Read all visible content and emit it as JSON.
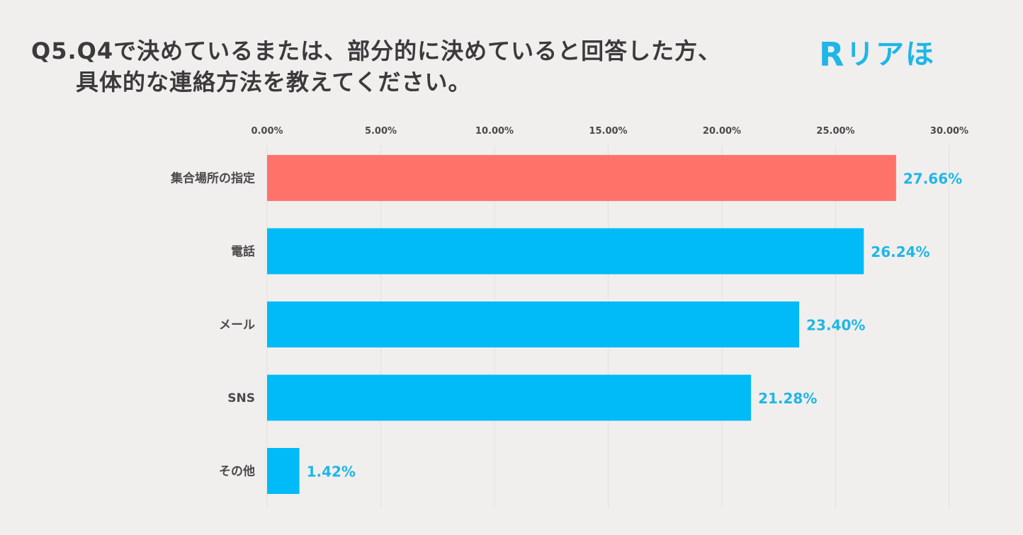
{
  "title": {
    "line1": "Q5.Q4で決めているまたは、部分的に決めていると回答した方、",
    "line2": "具体的な連絡方法を教えてください。"
  },
  "logo": {
    "mark": "R",
    "text": "リアほ",
    "color": "#1fb6e8"
  },
  "colors": {
    "highlight": "#ff726a",
    "bar": "#00bbf7",
    "value_label": "#1fb6e8",
    "gridline": "#e2e1df"
  },
  "chart_data": {
    "type": "bar",
    "orientation": "horizontal",
    "categories": [
      "集合場所の指定",
      "電話",
      "メール",
      "SNS",
      "その他"
    ],
    "values": [
      27.66,
      26.24,
      23.4,
      21.28,
      1.42
    ],
    "value_labels": [
      "27.66%",
      "26.24%",
      "23.40%",
      "21.28%",
      "1.42%"
    ],
    "highlight_index": 0,
    "xlim": [
      0,
      30
    ],
    "ticks": [
      0,
      5,
      10,
      15,
      20,
      25,
      30
    ],
    "tick_labels": [
      "0.00%",
      "5.00%",
      "10.00%",
      "15.00%",
      "20.00%",
      "25.00%",
      "30.00%"
    ],
    "axis_position": "top",
    "grid": true,
    "legend": false
  }
}
